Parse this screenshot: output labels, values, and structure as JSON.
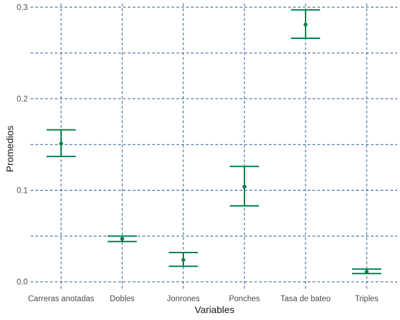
{
  "chart_data": {
    "type": "errorbar",
    "title": "",
    "xlabel": "Variables",
    "ylabel": "Promedios",
    "categories": [
      "Carreras anotadas",
      "Dobles",
      "Jonrones",
      "Ponches",
      "Tasa de bateo",
      "Triples"
    ],
    "means": [
      0.151,
      0.047,
      0.024,
      0.104,
      0.281,
      0.011
    ],
    "lower": [
      0.137,
      0.044,
      0.017,
      0.083,
      0.266,
      0.009
    ],
    "upper": [
      0.166,
      0.05,
      0.032,
      0.126,
      0.297,
      0.014
    ],
    "ylim": [
      -0.009,
      0.304
    ],
    "yticks": [
      0.0,
      0.1,
      0.2,
      0.3
    ],
    "ytick_labels": [
      "0.0",
      "0.1",
      "0.2",
      "0.3"
    ],
    "y_minor_gridlines": [
      0.05,
      0.15,
      0.25
    ],
    "grid": true,
    "grid_style": "dashed",
    "grid_color": "#2e5b8f",
    "series_color": "#00804a",
    "background": "#ffffff"
  }
}
